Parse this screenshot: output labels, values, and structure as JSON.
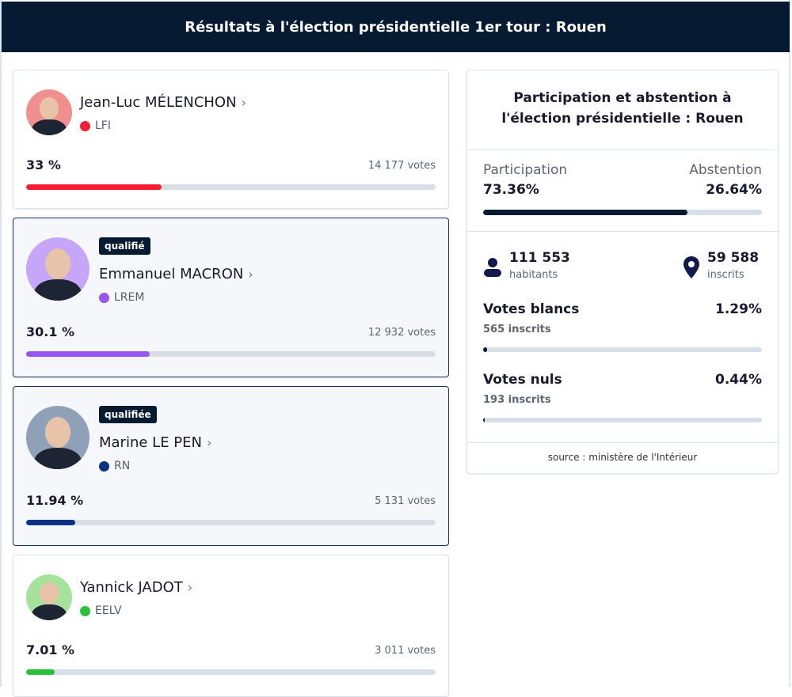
{
  "header": {
    "title": "Résultats à l'élection présidentielle 1er tour : Rouen"
  },
  "candidates": [
    {
      "name": "Jean-Luc MÉLENCHON",
      "party": "LFI",
      "color": "#f61e35",
      "avatar_bg": "#f0908e",
      "percent": "33 %",
      "percent_value": 33,
      "votes": "14 177 votes",
      "badge": ""
    },
    {
      "name": "Emmanuel MACRON",
      "party": "LREM",
      "color": "#9955f3",
      "avatar_bg": "#c5a6f8",
      "percent": "30.1 %",
      "percent_value": 30.1,
      "votes": "12 932 votes",
      "badge": "qualifié"
    },
    {
      "name": "Marine LE PEN",
      "party": "RN",
      "color": "#0a3282",
      "avatar_bg": "#8fa1b8",
      "percent": "11.94 %",
      "percent_value": 11.94,
      "votes": "5 131 votes",
      "badge": "qualifiée"
    },
    {
      "name": "Yannick JADOT",
      "party": "EELV",
      "color": "#2bc13c",
      "avatar_bg": "#a6e29c",
      "percent": "7.01 %",
      "percent_value": 7.01,
      "votes": "3 011 votes",
      "badge": ""
    }
  ],
  "participation": {
    "title": "Participation et abstention à l'élection présidentielle : Rouen",
    "participation_label": "Participation",
    "participation_value": "73.36%",
    "participation_pct": 73.36,
    "abstention_label": "Abstention",
    "abstention_value": "26.64%",
    "habitants": "111 553",
    "habitants_label": "habitants",
    "inscrits": "59 588",
    "inscrits_label": "inscrits",
    "blancs_label": "Votes blancs",
    "blancs_sub": "565 inscrits",
    "blancs_value": "1.29%",
    "blancs_pct": 1.29,
    "nuls_label": "Votes nuls",
    "nuls_sub": "193 inscrits",
    "nuls_value": "0.44%",
    "nuls_pct": 0.44,
    "source": "source : ministère de l'Intérieur"
  }
}
